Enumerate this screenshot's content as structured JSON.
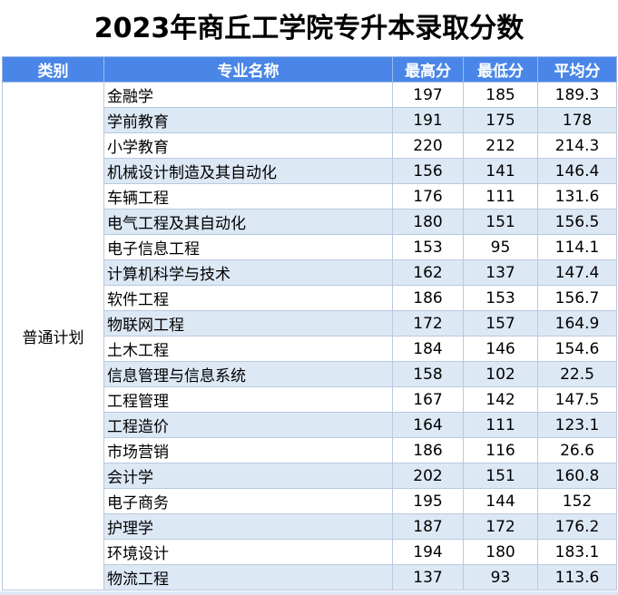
{
  "title": "2023年商丘工学院专升本录取分数",
  "headers": {
    "category": "类别",
    "major": "专业名称",
    "max": "最高分",
    "min": "最低分",
    "avg": "平均分"
  },
  "category": "普通计划",
  "rows": [
    {
      "major": "金融学",
      "max": "197",
      "min": "185",
      "avg": "189.3"
    },
    {
      "major": "学前教育",
      "max": "191",
      "min": "175",
      "avg": "178"
    },
    {
      "major": "小学教育",
      "max": "220",
      "min": "212",
      "avg": "214.3"
    },
    {
      "major": "机械设计制造及其自动化",
      "max": "156",
      "min": "141",
      "avg": "146.4"
    },
    {
      "major": "车辆工程",
      "max": "176",
      "min": "111",
      "avg": "131.6"
    },
    {
      "major": "电气工程及其自动化",
      "max": "180",
      "min": "151",
      "avg": "156.5"
    },
    {
      "major": "电子信息工程",
      "max": "153",
      "min": "95",
      "avg": "114.1"
    },
    {
      "major": "计算机科学与技术",
      "max": "162",
      "min": "137",
      "avg": "147.4"
    },
    {
      "major": "软件工程",
      "max": "186",
      "min": "153",
      "avg": "156.7"
    },
    {
      "major": "物联网工程",
      "max": "172",
      "min": "157",
      "avg": "164.9"
    },
    {
      "major": "土木工程",
      "max": "184",
      "min": "146",
      "avg": "154.6"
    },
    {
      "major": "信息管理与信息系统",
      "max": "158",
      "min": "102",
      "avg": "22.5"
    },
    {
      "major": "工程管理",
      "max": "167",
      "min": "142",
      "avg": "147.5"
    },
    {
      "major": "工程造价",
      "max": "164",
      "min": "111",
      "avg": "123.1"
    },
    {
      "major": "市场营销",
      "max": "186",
      "min": "116",
      "avg": "26.6"
    },
    {
      "major": "会计学",
      "max": "202",
      "min": "151",
      "avg": "160.8"
    },
    {
      "major": "电子商务",
      "max": "195",
      "min": "144",
      "avg": "152"
    },
    {
      "major": "护理学",
      "max": "187",
      "min": "172",
      "avg": "176.2"
    },
    {
      "major": "环境设计",
      "max": "194",
      "min": "180",
      "avg": "183.1"
    },
    {
      "major": "物流工程",
      "max": "137",
      "min": "93",
      "avg": "113.6"
    }
  ],
  "colors": {
    "header_bg": "#4a86e8",
    "header_text": "#ffffff",
    "row_stripe": "#dde8f5"
  }
}
